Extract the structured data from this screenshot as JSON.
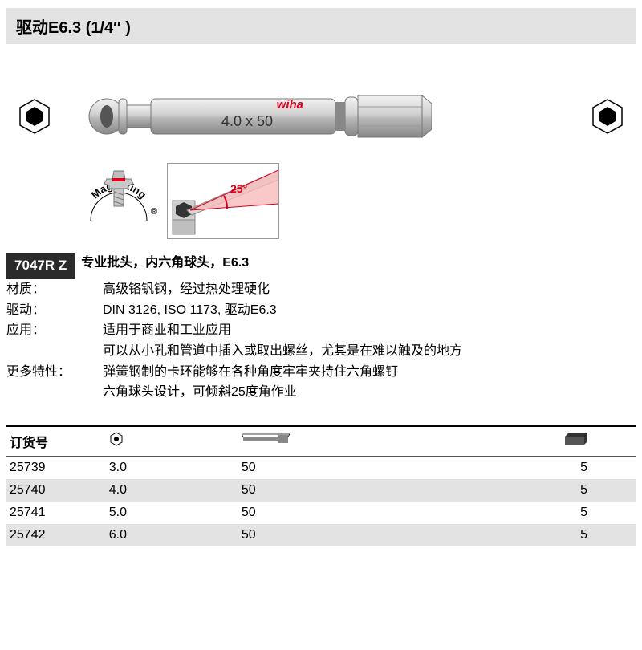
{
  "header": {
    "title": "驱动E6.3 (1/4″ )"
  },
  "hero": {
    "bit_label": "4.0 x 50",
    "brand": "wiha",
    "magic_ring": "MagicRing",
    "angle_label": "25°",
    "hex_icon_color": "#000000",
    "bit_colors": {
      "body": "#c9c9c9",
      "shadow": "#8a8a8a",
      "highlight": "#f0f0f0"
    },
    "magic_ring_red": "#d9001b"
  },
  "model": {
    "code": "7047R Z",
    "headline": "专业批头，内六角球头，E6.3"
  },
  "specs": [
    {
      "label": "材质：",
      "value": "高级铬钒钢，经过热处理硬化"
    },
    {
      "label": "驱动：",
      "value": "DIN 3126, ISO 1173, 驱动E6.3"
    },
    {
      "label": "应用：",
      "value": "适用于商业和工业应用"
    },
    {
      "label": "",
      "value": "可以从小孔和管道中插入或取出螺丝，尤其是在难以触及的地方"
    },
    {
      "label": "更多特性：",
      "value": "弹簧钢制的卡环能够在各种角度牢牢夹持住六角螺钉"
    },
    {
      "label": "",
      "value": "六角球头设计，可倾斜25度角作业"
    }
  ],
  "table": {
    "headers": {
      "order": "订货号"
    },
    "rows": [
      {
        "order": "25739",
        "hex": "3.0",
        "len": "50",
        "pack": "5",
        "alt": false
      },
      {
        "order": "25740",
        "hex": "4.0",
        "len": "50",
        "pack": "5",
        "alt": true
      },
      {
        "order": "25741",
        "hex": "5.0",
        "len": "50",
        "pack": "5",
        "alt": false
      },
      {
        "order": "25742",
        "hex": "6.0",
        "len": "50",
        "pack": "5",
        "alt": true
      }
    ]
  }
}
